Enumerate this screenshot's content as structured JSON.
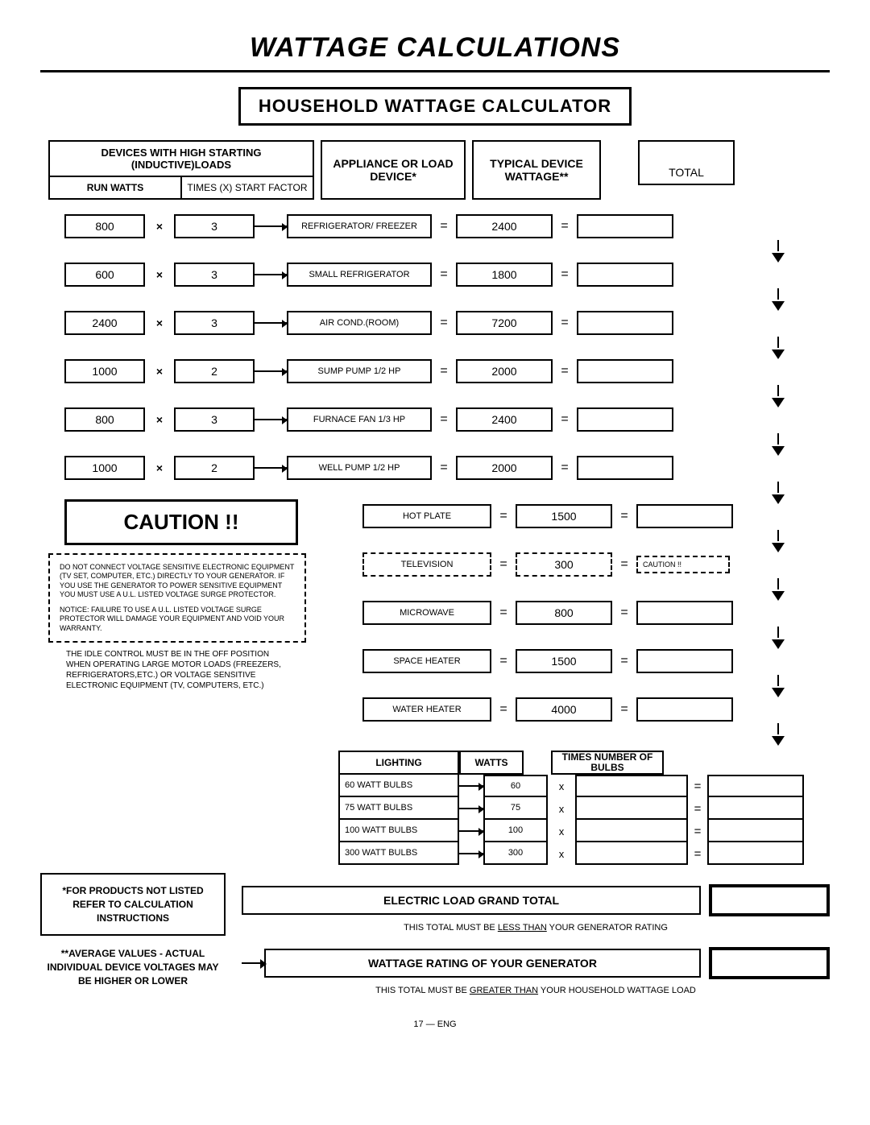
{
  "title": "WATTAGE CALCULATIONS",
  "sectionTitle": "HOUSEHOLD WATTAGE CALCULATOR",
  "headers": {
    "inductive": "DEVICES WITH HIGH STARTING (INDUCTIVE)LOADS",
    "runWatts": "RUN WATTS",
    "startFactor": "TIMES (X) START FACTOR",
    "appliance": "APPLIANCE OR LOAD DEVICE*",
    "typical": "TYPICAL DEVICE WATTAGE**",
    "total": "TOTAL"
  },
  "inductiveRows": [
    {
      "run": "800",
      "factor": "3",
      "name": "REFRIGERATOR/ FREEZER",
      "wattage": "2400"
    },
    {
      "run": "600",
      "factor": "3",
      "name": "SMALL REFRIGERATOR",
      "wattage": "1800"
    },
    {
      "run": "2400",
      "factor": "3",
      "name": "AIR COND.(ROOM)",
      "wattage": "7200"
    },
    {
      "run": "1000",
      "factor": "2",
      "name": "SUMP PUMP 1/2 HP",
      "wattage": "2000"
    },
    {
      "run": "800",
      "factor": "3",
      "name": "FURNACE FAN 1/3 HP",
      "wattage": "2400"
    },
    {
      "run": "1000",
      "factor": "2",
      "name": "WELL PUMP 1/2 HP",
      "wattage": "2000"
    }
  ],
  "caution": "CAUTION !!",
  "cautionText1": "DO NOT CONNECT VOLTAGE SENSITIVE ELECTRONIC EQUIPMENT (TV SET, COMPUTER, ETC.) DIRECTLY TO YOUR GENERATOR. IF YOU USE THE GENERATOR TO POWER SENSITIVE EQUIPMENT YOU MUST USE A U.L. LISTED VOLTAGE SURGE PROTECTOR.",
  "cautionText2": "NOTICE: FAILURE TO USE A U.L. LISTED VOLTAGE SURGE PROTECTOR WILL DAMAGE YOUR EQUIPMENT AND VOID YOUR WARRANTY.",
  "idleNote": "THE IDLE CONTROL MUST BE IN THE OFF POSITION WHEN OPERATING LARGE MOTOR LOADS (FREEZERS, REFRIGERATORS,ETC.) OR VOLTAGE SENSITIVE ELECTRONIC EQUIPMENT (TV, COMPUTERS, ETC.)",
  "simpleRows": [
    {
      "name": "HOT PLATE",
      "wattage": "1500",
      "dashed": false
    },
    {
      "name": "TELEVISION",
      "wattage": "300",
      "dashed": true
    },
    {
      "name": "MICROWAVE",
      "wattage": "800",
      "dashed": false
    },
    {
      "name": "SPACE HEATER",
      "wattage": "1500",
      "dashed": false
    },
    {
      "name": "WATER HEATER",
      "wattage": "4000",
      "dashed": false
    }
  ],
  "cautionMini": "CAUTION !!",
  "lightingHdr": {
    "lighting": "LIGHTING",
    "watts": "WATTS",
    "times": "TIMES NUMBER OF BULBS"
  },
  "lightRows": [
    {
      "name": "60 WATT BULBS",
      "watts": "60"
    },
    {
      "name": "75 WATT BULBS",
      "watts": "75"
    },
    {
      "name": "100 WATT BULBS",
      "watts": "100"
    },
    {
      "name": "300 WATT BULBS",
      "watts": "300"
    }
  ],
  "footnote1": "*FOR PRODUCTS NOT LISTED REFER TO CALCULATION INSTRUCTIONS",
  "footnote2": "**AVERAGE VALUES - ACTUAL INDIVIDUAL DEVICE VOLTAGES MAY BE HIGHER OR LOWER",
  "grandTotal": "ELECTRIC LOAD GRAND TOTAL",
  "grandNote1a": "THIS TOTAL MUST BE ",
  "grandNote1b": "LESS THAN",
  "grandNote1c": " YOUR GENERATOR RATING",
  "genRating": "WATTAGE RATING OF YOUR GENERATOR",
  "grandNote2a": "THIS TOTAL MUST BE ",
  "grandNote2b": "GREATER THAN",
  "grandNote2c": " YOUR HOUSEHOLD WATTAGE LOAD",
  "pageNum": "17  —  ENG",
  "symbols": {
    "times": "×",
    "x": "x",
    "eq": "="
  }
}
